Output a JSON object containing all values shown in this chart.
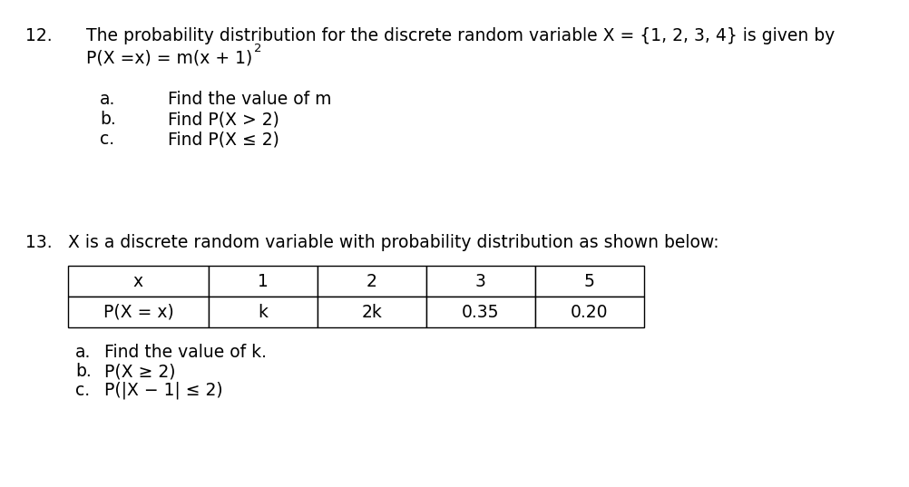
{
  "bg_color": "#ffffff",
  "q12_number": "12.",
  "q12_line1": "The probability distribution for the discrete random variable X = {1, 2, 3, 4} is given by",
  "q12_line2_normal": "P(X =x) = m(x + 1)",
  "q12_line2_super": "2",
  "q12_sub_a": "a.",
  "q12_sub_b": "b.",
  "q12_sub_c": "c.",
  "q12_text_a": "Find the value of m",
  "q12_text_b": "Find P(X > 2)",
  "q12_text_c": "Find P(X ≤ 2)",
  "q13_number": "13.",
  "q13_line1": "X is a discrete random variable with probability distribution as shown below:",
  "table_headers": [
    "x",
    "1",
    "2",
    "3",
    "5"
  ],
  "table_row2_label": "P(X = x)",
  "table_row2_values": [
    "k",
    "2k",
    "0.35",
    "0.20"
  ],
  "q13_sub_a": "a.",
  "q13_sub_b": "b.",
  "q13_sub_c": "c.",
  "q13_text_a": "Find the value of k.",
  "q13_text_b": "P(X ≥ 2)",
  "q13_text_c": "P(|X − 1| ≤ 2)",
  "font_size": 13.5,
  "font_family": "DejaVu Sans"
}
